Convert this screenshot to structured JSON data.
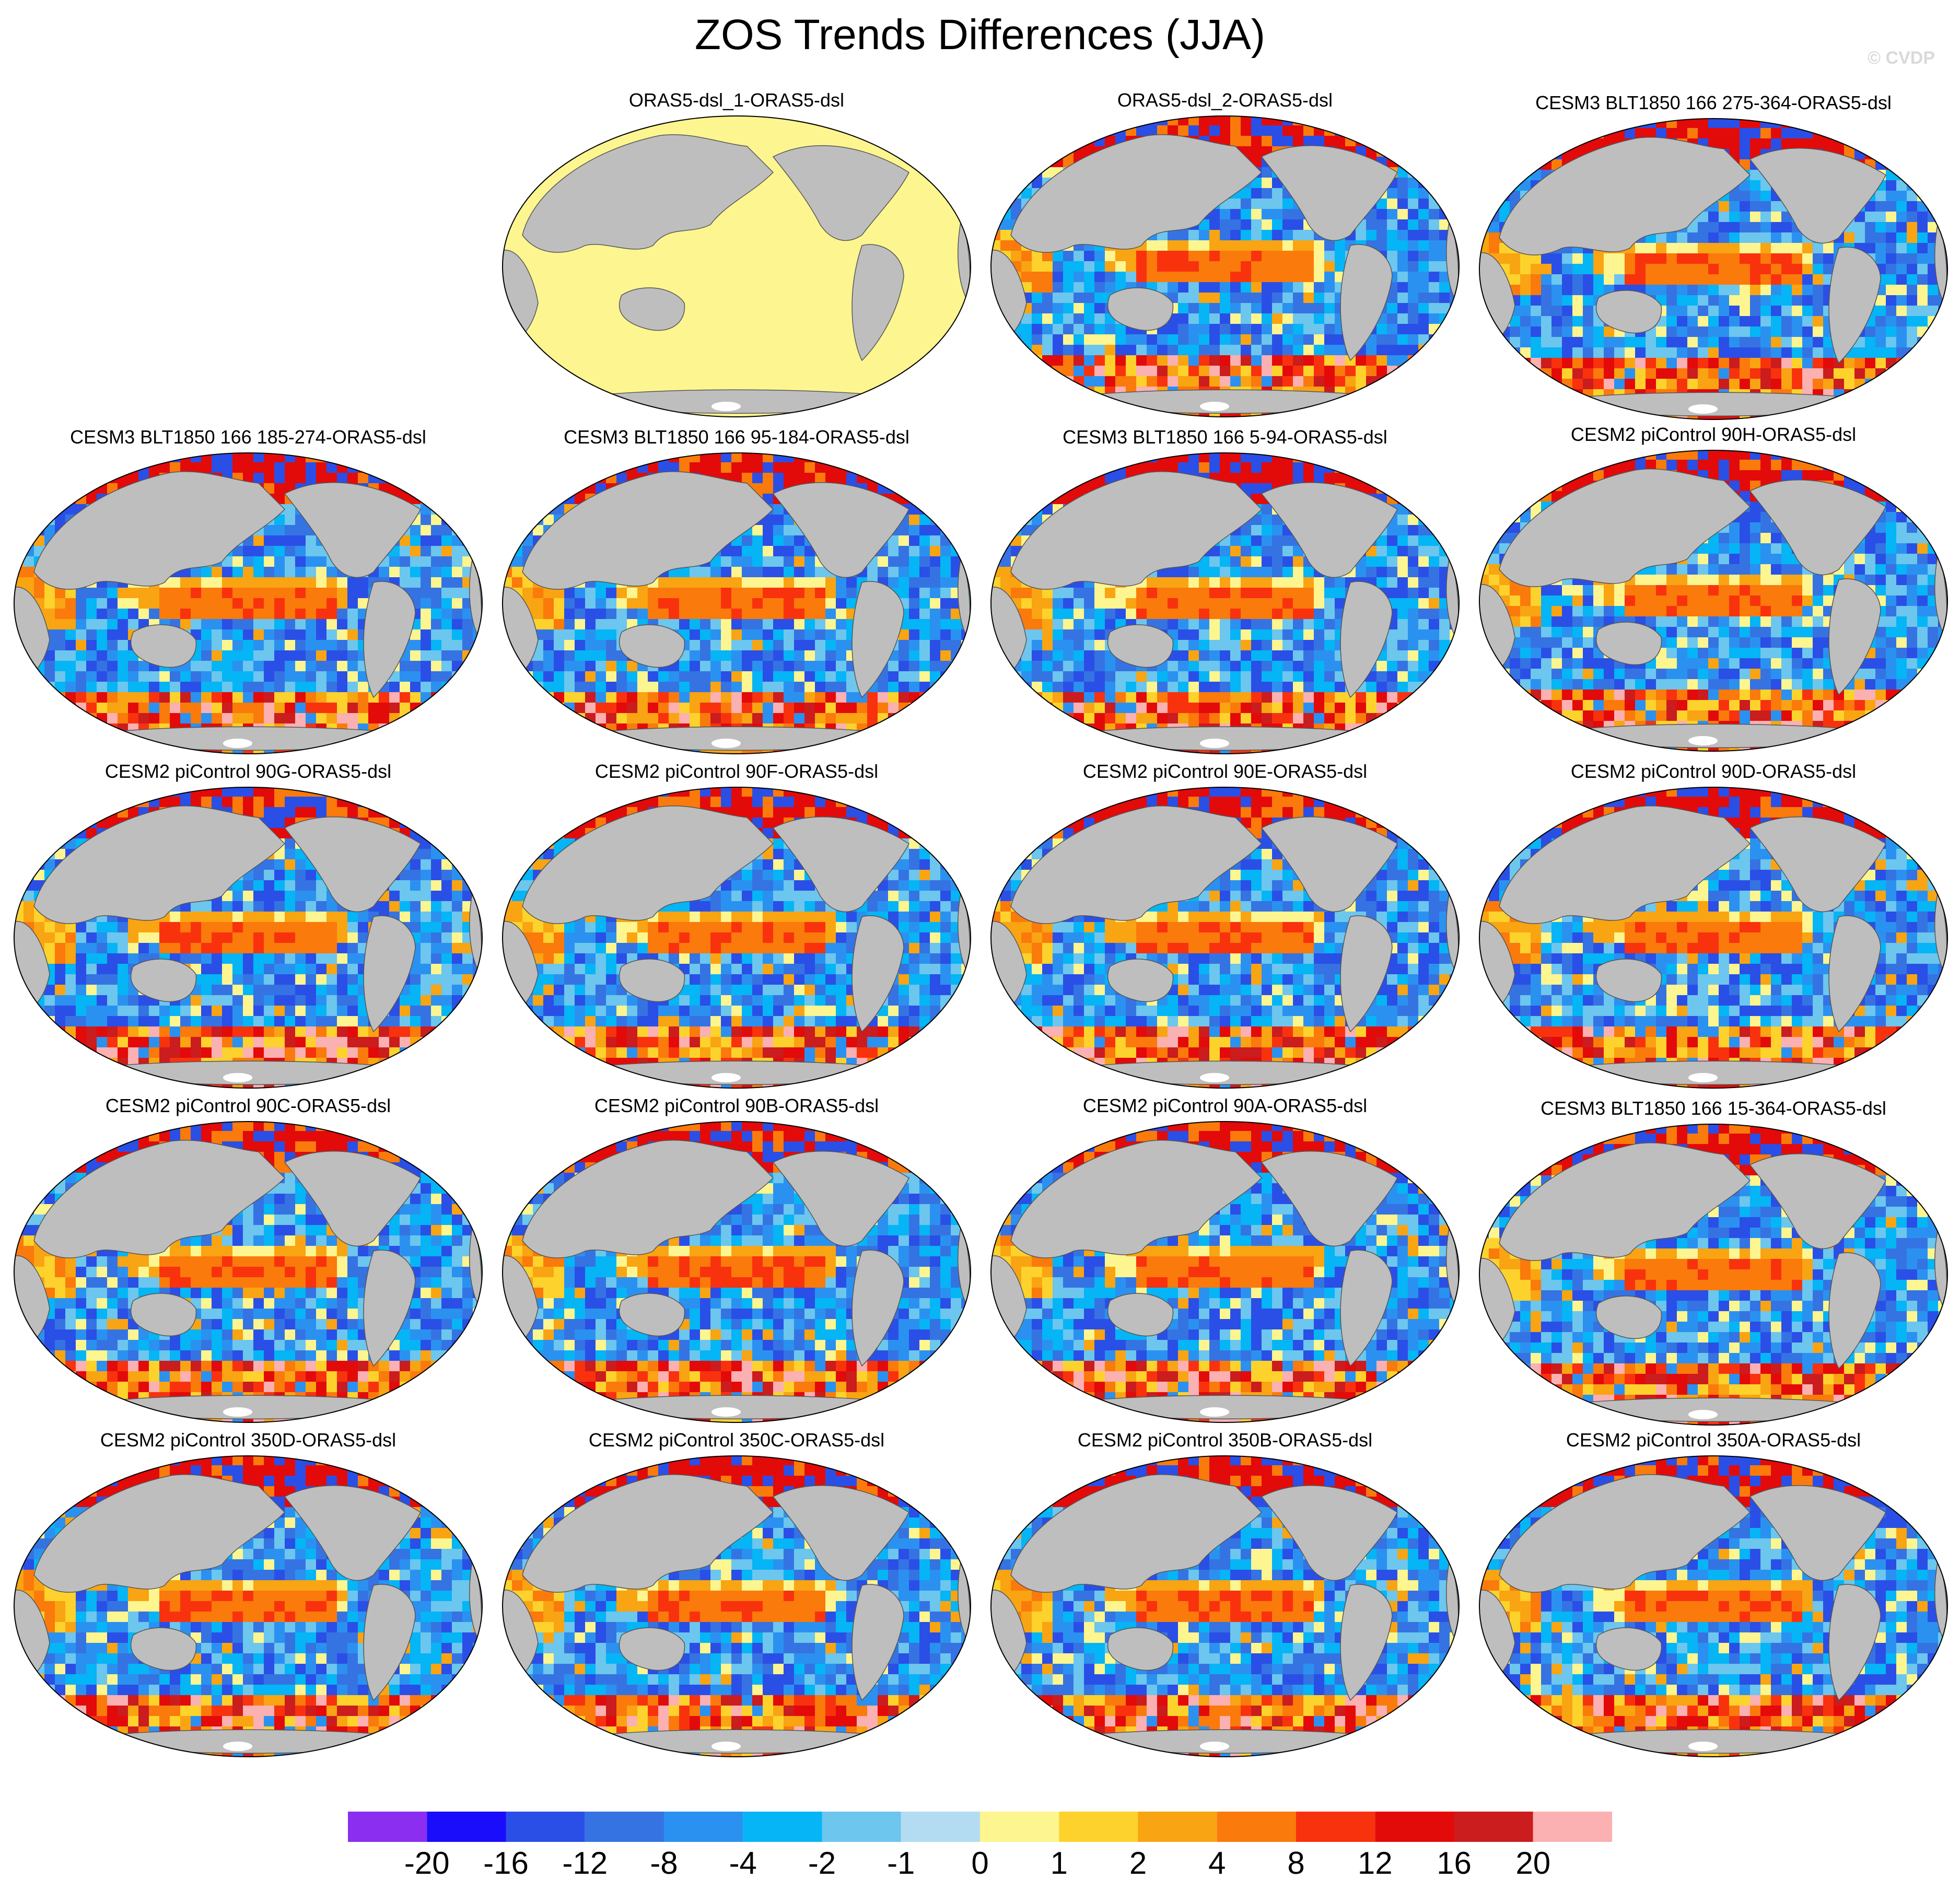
{
  "title": "ZOS Trends Differences (JJA)",
  "copyright": "© CVDP",
  "panels": [
    {
      "label": "ORAS5-dsl_1-ORAS5-dsl",
      "fill": "uniform"
    },
    {
      "label": "ORAS5-dsl_2-ORAS5-dsl",
      "fill": "anomaly"
    },
    {
      "label": "CESM3 BLT1850 166 275-364-ORAS5-dsl",
      "fill": "anomaly"
    },
    {
      "label": "CESM3 BLT1850 166 185-274-ORAS5-dsl",
      "fill": "anomaly"
    },
    {
      "label": "CESM3 BLT1850 166 95-184-ORAS5-dsl",
      "fill": "anomaly"
    },
    {
      "label": "CESM3 BLT1850 166 5-94-ORAS5-dsl",
      "fill": "anomaly"
    },
    {
      "label": "CESM2 piControl 90H-ORAS5-dsl",
      "fill": "anomaly"
    },
    {
      "label": "CESM2 piControl 90G-ORAS5-dsl",
      "fill": "anomaly"
    },
    {
      "label": "CESM2 piControl 90F-ORAS5-dsl",
      "fill": "anomaly"
    },
    {
      "label": "CESM2 piControl 90E-ORAS5-dsl",
      "fill": "anomaly"
    },
    {
      "label": "CESM2 piControl 90D-ORAS5-dsl",
      "fill": "anomaly"
    },
    {
      "label": "CESM2 piControl 90C-ORAS5-dsl",
      "fill": "anomaly"
    },
    {
      "label": "CESM2 piControl 90B-ORAS5-dsl",
      "fill": "anomaly"
    },
    {
      "label": "CESM2 piControl 90A-ORAS5-dsl",
      "fill": "anomaly"
    },
    {
      "label": "CESM3 BLT1850 166 15-364-ORAS5-dsl",
      "fill": "anomaly"
    },
    {
      "label": "CESM2 piControl 350D-ORAS5-dsl",
      "fill": "anomaly"
    },
    {
      "label": "CESM2 piControl 350C-ORAS5-dsl",
      "fill": "anomaly"
    },
    {
      "label": "CESM2 piControl 350B-ORAS5-dsl",
      "fill": "anomaly"
    },
    {
      "label": "CESM2 piControl 350A-ORAS5-dsl",
      "fill": "anomaly"
    }
  ],
  "colors": {
    "land": "#bebebe",
    "ocean_uniform": "#fdf58f",
    "south_pole": "#ffffff"
  },
  "colorbar": {
    "colors": [
      "#8b2ef0",
      "#1a0dfb",
      "#2a4fe6",
      "#3573e3",
      "#2b91f0",
      "#05b5f5",
      "#6cc6ee",
      "#b3dcf2",
      "#fdf58f",
      "#fdd22c",
      "#f9a412",
      "#fa7a0c",
      "#f9320e",
      "#e30a0a",
      "#cb1c1e",
      "#fbb0b1"
    ],
    "labels": [
      "-20",
      "-16",
      "-12",
      "-8",
      "-4",
      "-2",
      "-1",
      "0",
      "1",
      "2",
      "4",
      "8",
      "12",
      "16",
      "20"
    ]
  }
}
